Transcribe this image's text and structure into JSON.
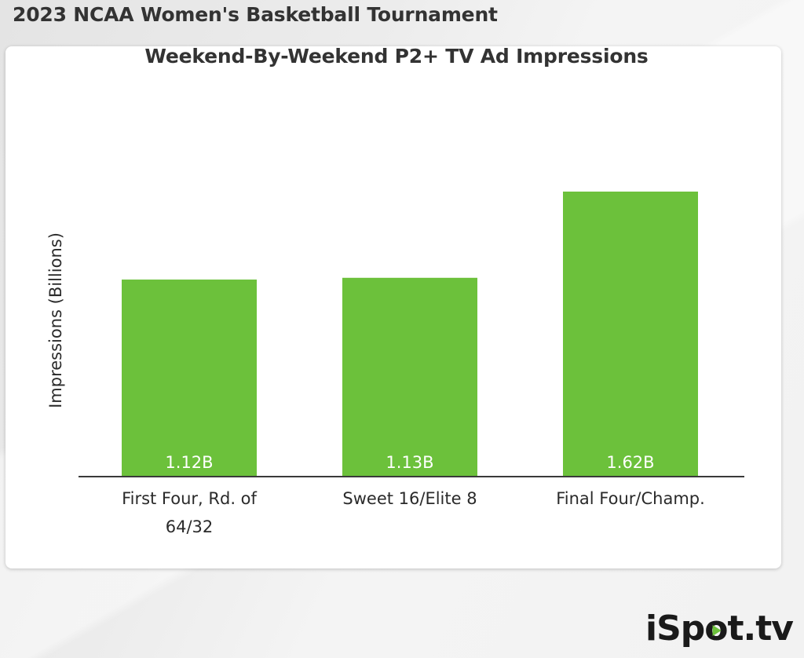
{
  "header": {
    "title": "2023 NCAA Women's Basketball Tournament"
  },
  "chart_data": {
    "type": "bar",
    "title": "Weekend-By-Weekend P2+ TV Ad Impressions",
    "xlabel": "",
    "ylabel": "Impressions (Billions)",
    "categories": [
      "First Four, Rd. of 64/32",
      "Sweet 16/Elite 8",
      "Final Four/Champ."
    ],
    "values": [
      1.12,
      1.13,
      1.62
    ],
    "value_labels": [
      "1.12B",
      "1.13B",
      "1.62B"
    ],
    "ylim": [
      0,
      1.7
    ],
    "grid": false,
    "bar_color": "#6cc13b",
    "axis_color": "#3a3a3a"
  },
  "brand": {
    "logo_text": "iSpot.tv",
    "accent": "#6cc13b"
  }
}
